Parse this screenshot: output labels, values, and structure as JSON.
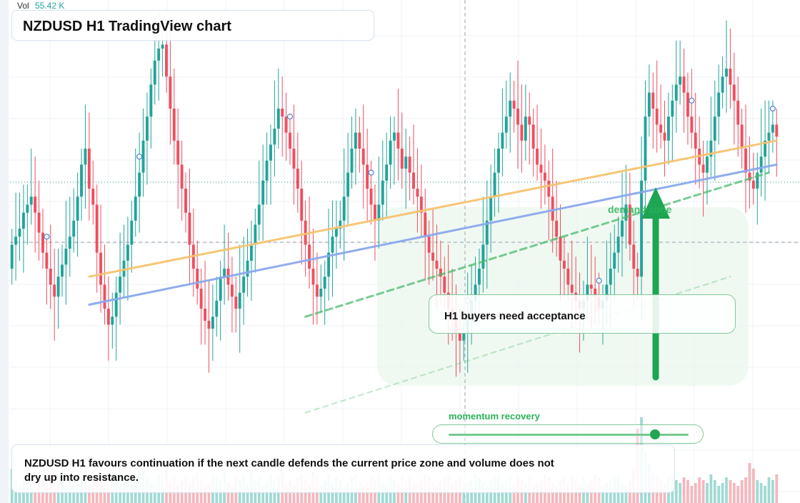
{
  "header": {
    "volume_label": "Vol",
    "volume_value": "55.42 K"
  },
  "title": "NZDUSD H1 TradingView chart",
  "callout": {
    "text": "H1 buyers need acceptance"
  },
  "zone": {
    "label": "demand zone"
  },
  "momentum": {
    "label": "momentum recovery",
    "level": 0.86
  },
  "footer": {
    "text": "NZDUSD H1 favours continuation if the next candle defends the current price zone and volume does not dry up into resistance."
  },
  "colors": {
    "up": "#22a39a",
    "down": "#ef4f5f",
    "up_volume": "#8fd3cb",
    "down_volume": "#f3aab2",
    "orange_line": "#f6c370",
    "blue_line": "#8aa9ec",
    "green_dashed": "#4cbb6f",
    "zone": "#e8f6ea",
    "arrow": "#1da552"
  },
  "chart_data": {
    "type": "candlestick",
    "title": "NZDUSD H1 TradingView chart",
    "ylim": [
      0,
      100
    ],
    "open": [
      40,
      46,
      48,
      50,
      54,
      56,
      58,
      54,
      49,
      44,
      40,
      36,
      33,
      38,
      41,
      45,
      48,
      52,
      58,
      66,
      70,
      60,
      56,
      44,
      36,
      30,
      26,
      28,
      34,
      38,
      42,
      46,
      52,
      58,
      64,
      72,
      78,
      86,
      92,
      95,
      96,
      88,
      80,
      72,
      66,
      60,
      54,
      46,
      40,
      35,
      30,
      27,
      25,
      28,
      32,
      38,
      40,
      36,
      33,
      30,
      34,
      38,
      42,
      46,
      51,
      56,
      62,
      67,
      71,
      75,
      80,
      78,
      74,
      70,
      65,
      60,
      52,
      46,
      40,
      36,
      33,
      35,
      38,
      44,
      48,
      50,
      52,
      58,
      64,
      70,
      74,
      70,
      66,
      60,
      56,
      52,
      56,
      62,
      66,
      72,
      74,
      70,
      65,
      68,
      64,
      60,
      58,
      54,
      48,
      44,
      42,
      40,
      38,
      34,
      30,
      28,
      24,
      22,
      24,
      28,
      32,
      36,
      40,
      46,
      52,
      58,
      64,
      70,
      74,
      78,
      82,
      80,
      76,
      72,
      78,
      76,
      70,
      66,
      64,
      62,
      58,
      52,
      48,
      42,
      40,
      36,
      34,
      32,
      30,
      32,
      36,
      35,
      33,
      30,
      32,
      36,
      40,
      44,
      48,
      52,
      56,
      46,
      40,
      38,
      62,
      78,
      84,
      80,
      76,
      74,
      72,
      78,
      82,
      86,
      88,
      84,
      78,
      74,
      70,
      66,
      64,
      68,
      72,
      78,
      84,
      88,
      90,
      86,
      82,
      76,
      70,
      64,
      62,
      60,
      64,
      68,
      72,
      74,
      76
    ],
    "close": [
      46,
      48,
      50,
      54,
      56,
      58,
      54,
      49,
      44,
      40,
      36,
      33,
      38,
      41,
      45,
      48,
      52,
      58,
      66,
      70,
      60,
      56,
      44,
      36,
      30,
      26,
      28,
      34,
      38,
      42,
      46,
      52,
      58,
      64,
      72,
      78,
      86,
      92,
      95,
      96,
      88,
      80,
      72,
      66,
      60,
      54,
      46,
      40,
      35,
      30,
      27,
      25,
      28,
      32,
      38,
      40,
      36,
      33,
      30,
      34,
      38,
      42,
      46,
      51,
      56,
      62,
      67,
      71,
      75,
      80,
      78,
      74,
      70,
      65,
      60,
      52,
      46,
      40,
      36,
      33,
      35,
      38,
      44,
      48,
      50,
      52,
      58,
      64,
      70,
      74,
      70,
      66,
      60,
      56,
      52,
      56,
      62,
      66,
      72,
      74,
      70,
      65,
      68,
      64,
      60,
      58,
      54,
      48,
      44,
      42,
      40,
      38,
      34,
      30,
      28,
      24,
      22,
      24,
      28,
      32,
      36,
      40,
      46,
      52,
      58,
      64,
      70,
      74,
      78,
      82,
      80,
      76,
      72,
      78,
      76,
      70,
      66,
      64,
      62,
      58,
      52,
      48,
      42,
      40,
      36,
      34,
      32,
      30,
      32,
      36,
      35,
      33,
      30,
      32,
      36,
      40,
      44,
      48,
      52,
      56,
      46,
      40,
      38,
      62,
      78,
      84,
      80,
      76,
      74,
      72,
      78,
      82,
      86,
      88,
      84,
      78,
      74,
      70,
      66,
      64,
      68,
      72,
      78,
      84,
      88,
      90,
      86,
      82,
      76,
      70,
      64,
      62,
      60,
      64,
      68,
      72,
      74,
      76,
      73
    ],
    "volume": [
      12,
      8,
      6,
      9,
      14,
      7,
      5,
      10,
      8,
      6,
      11,
      9,
      7,
      13,
      6,
      8,
      10,
      7,
      9,
      12,
      6,
      8,
      10,
      15,
      9,
      7,
      12,
      8,
      6,
      10,
      9,
      7,
      8,
      11,
      14,
      9,
      7,
      6,
      10,
      8,
      12,
      7,
      9,
      6,
      8,
      10,
      7,
      9,
      11,
      8,
      6,
      7,
      10,
      9,
      8,
      12,
      7,
      6,
      9,
      8,
      10,
      7,
      11,
      8,
      9,
      6,
      7,
      10,
      8,
      9,
      12,
      7,
      8,
      6,
      9,
      10,
      8,
      7,
      11,
      9,
      6,
      8,
      10,
      7,
      9,
      8,
      6,
      7,
      9,
      10,
      8,
      6,
      7,
      9,
      8,
      10,
      7,
      6,
      9,
      8,
      7,
      10,
      8,
      9,
      6,
      7,
      8,
      10,
      9,
      7,
      6,
      8,
      9,
      10,
      7,
      8,
      9,
      6,
      7,
      8,
      10,
      9,
      7,
      6,
      8,
      9,
      10,
      7,
      8,
      9,
      6,
      10,
      8,
      7,
      9,
      6,
      7,
      8,
      10,
      9,
      7,
      6,
      8,
      9,
      7,
      10,
      8,
      6,
      9,
      7,
      8,
      10,
      9,
      6,
      7,
      8,
      9,
      10,
      7,
      6,
      8,
      12,
      26,
      30,
      18,
      14,
      10,
      9,
      8,
      7,
      9,
      10,
      8,
      7,
      9,
      8,
      6,
      7,
      9,
      8,
      7,
      10,
      8,
      6,
      7,
      9,
      8,
      7,
      6,
      8,
      9,
      14,
      12,
      8,
      7,
      6,
      9,
      8,
      10
    ],
    "lines": [
      {
        "kind": "orange-trend",
        "points": [
          [
            20,
            38
          ],
          [
            198,
            72
          ]
        ]
      },
      {
        "kind": "blue-trend",
        "points": [
          [
            20,
            31
          ],
          [
            198,
            66
          ]
        ]
      },
      {
        "kind": "green-dashed",
        "points": [
          [
            76,
            28
          ],
          [
            196,
            64
          ]
        ]
      },
      {
        "kind": "green-dashed-faint",
        "points": [
          [
            76,
            4
          ],
          [
            186,
            38
          ]
        ]
      }
    ]
  }
}
